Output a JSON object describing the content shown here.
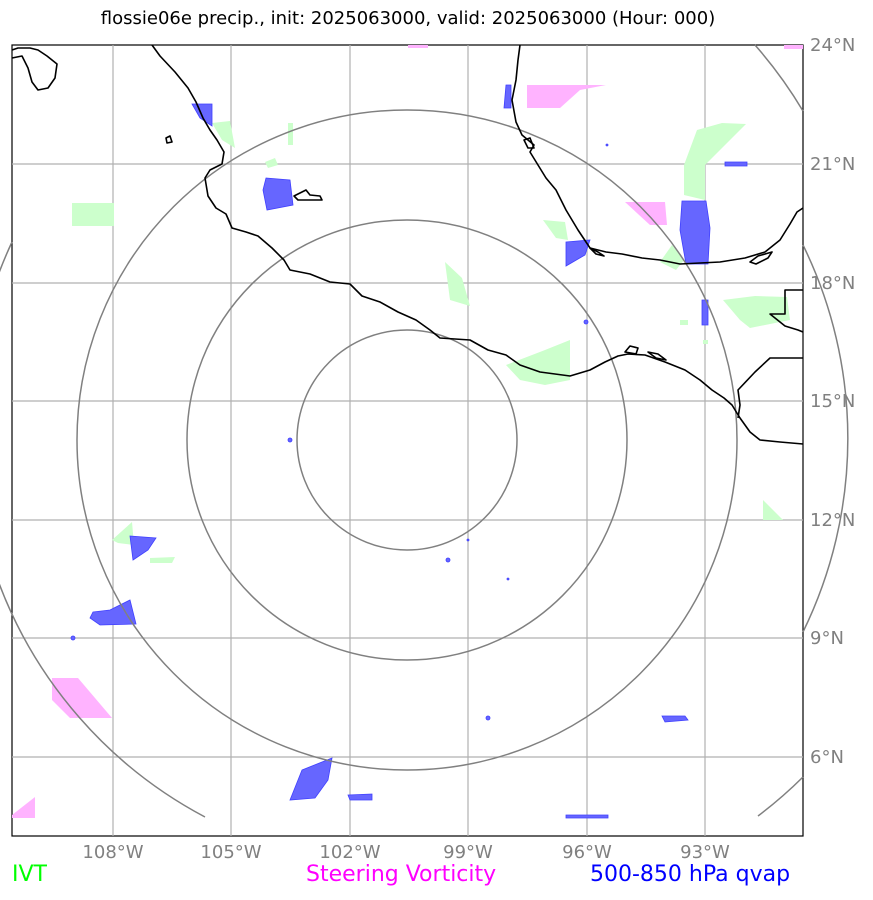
{
  "title": "flossie06e precip., init: 2025063000, valid: 2025063000 (Hour: 000)",
  "axes": {
    "x_ticks": [
      "108°W",
      "105°W",
      "102°W",
      "99°W",
      "96°W",
      "93°W"
    ],
    "y_ticks": [
      "24°N",
      "21°N",
      "18°N",
      "15°N",
      "12°N",
      "9°N",
      "6°N"
    ]
  },
  "legend": {
    "ivt": {
      "label": "IVT",
      "color": "#00ff00"
    },
    "vorticity": {
      "label": "Steering Vorticity",
      "color": "#ff00ff"
    },
    "qvap": {
      "label": "500-850 hPa qvap",
      "color": "#0000ff"
    }
  },
  "colors": {
    "ivt_fill": "#ccffcc",
    "vorticity_fill": "#ffb3ff",
    "qvap_fill": "#6666ff",
    "grid": "#b0b0b0",
    "range_rings": "#808080",
    "coastline": "#000000"
  }
}
